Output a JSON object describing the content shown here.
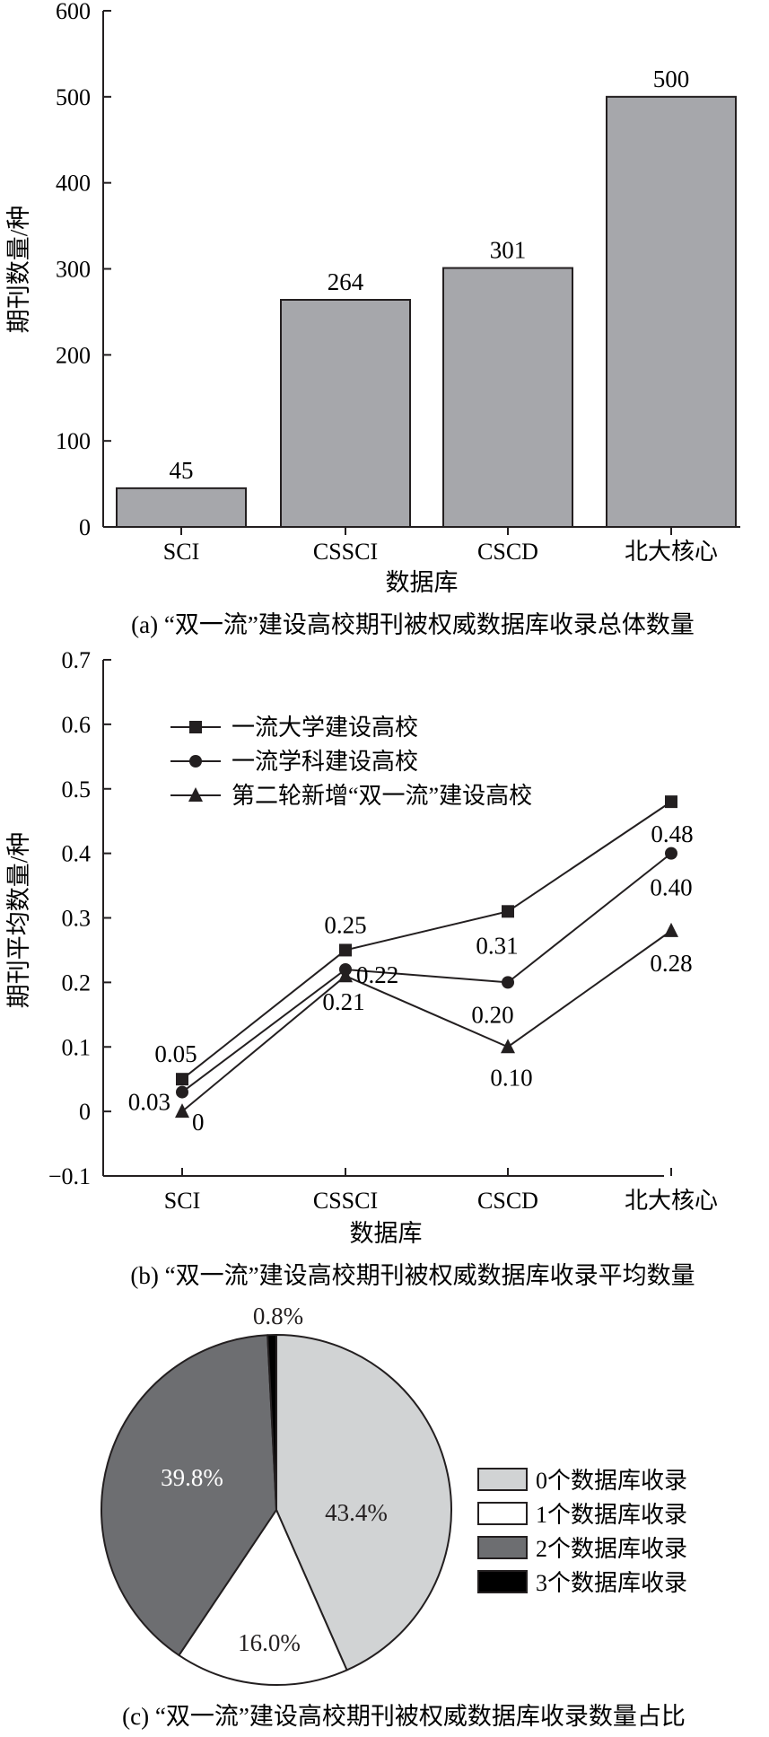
{
  "chart_data": [
    {
      "id": "a",
      "type": "bar",
      "caption": "(a) “双一流”建设高校期刊被权威数据库收录总体数量",
      "xlabel": "数据库",
      "ylabel": "期刊数量/种",
      "categories": [
        "SCI",
        "CSSCI",
        "CSCD",
        "北大核心"
      ],
      "values": [
        45,
        264,
        301,
        500
      ],
      "value_labels": [
        "45",
        "264",
        "301",
        "500"
      ],
      "ylim": [
        0,
        600
      ],
      "yticks": [
        0,
        100,
        200,
        300,
        400,
        500,
        600
      ],
      "ytick_labels": [
        "0",
        "100",
        "200",
        "300",
        "400",
        "500",
        "600"
      ],
      "bar_color": "#a6a7ab",
      "grid": false
    },
    {
      "id": "b",
      "type": "line",
      "caption": "(b) “双一流”建设高校期刊被权威数据库收录平均数量",
      "xlabel": "数据库",
      "ylabel": "期刊平均数量/种",
      "categories": [
        "SCI",
        "CSSCI",
        "CSCD",
        "北大核心"
      ],
      "ylim": [
        -0.1,
        0.7
      ],
      "yticks": [
        -0.1,
        0,
        0.1,
        0.2,
        0.3,
        0.4,
        0.5,
        0.6,
        0.7
      ],
      "ytick_labels": [
        "−0.1",
        "0",
        "0.1",
        "0.2",
        "0.3",
        "0.4",
        "0.5",
        "0.6",
        "0.7"
      ],
      "legend_position": "top-left",
      "grid": false,
      "series": [
        {
          "name": "一流大学建设高校",
          "marker": "square",
          "values": [
            0.05,
            0.25,
            0.31,
            0.48
          ],
          "labels": [
            "0.05",
            "0.25",
            "0.31",
            "0.48"
          ]
        },
        {
          "name": "一流学科建设高校",
          "marker": "circle",
          "values": [
            0.03,
            0.22,
            0.2,
            0.4
          ],
          "labels": [
            "0.03",
            "0.22",
            "0.20",
            "0.40"
          ]
        },
        {
          "name": "第二轮新增“双一流”建设高校",
          "marker": "triangle",
          "values": [
            0,
            0.21,
            0.1,
            0.28
          ],
          "labels": [
            "0",
            "0.21",
            "0.10",
            "0.28"
          ]
        }
      ]
    },
    {
      "id": "c",
      "type": "pie",
      "caption": "(c) “双一流”建设高校期刊被权威数据库收录数量占比",
      "legend_position": "right",
      "slices": [
        {
          "name": "0个数据库收录",
          "value": 43.4,
          "label": "43.4%",
          "color": "#d1d3d4"
        },
        {
          "name": "1个数据库收录",
          "value": 16.0,
          "label": "16.0%",
          "color": "#ffffff"
        },
        {
          "name": "2个数据库收录",
          "value": 39.8,
          "label": "39.8%",
          "color": "#6d6e71"
        },
        {
          "name": "3个数据库收录",
          "value": 0.8,
          "label": "0.8%",
          "color": "#000000"
        }
      ]
    }
  ]
}
